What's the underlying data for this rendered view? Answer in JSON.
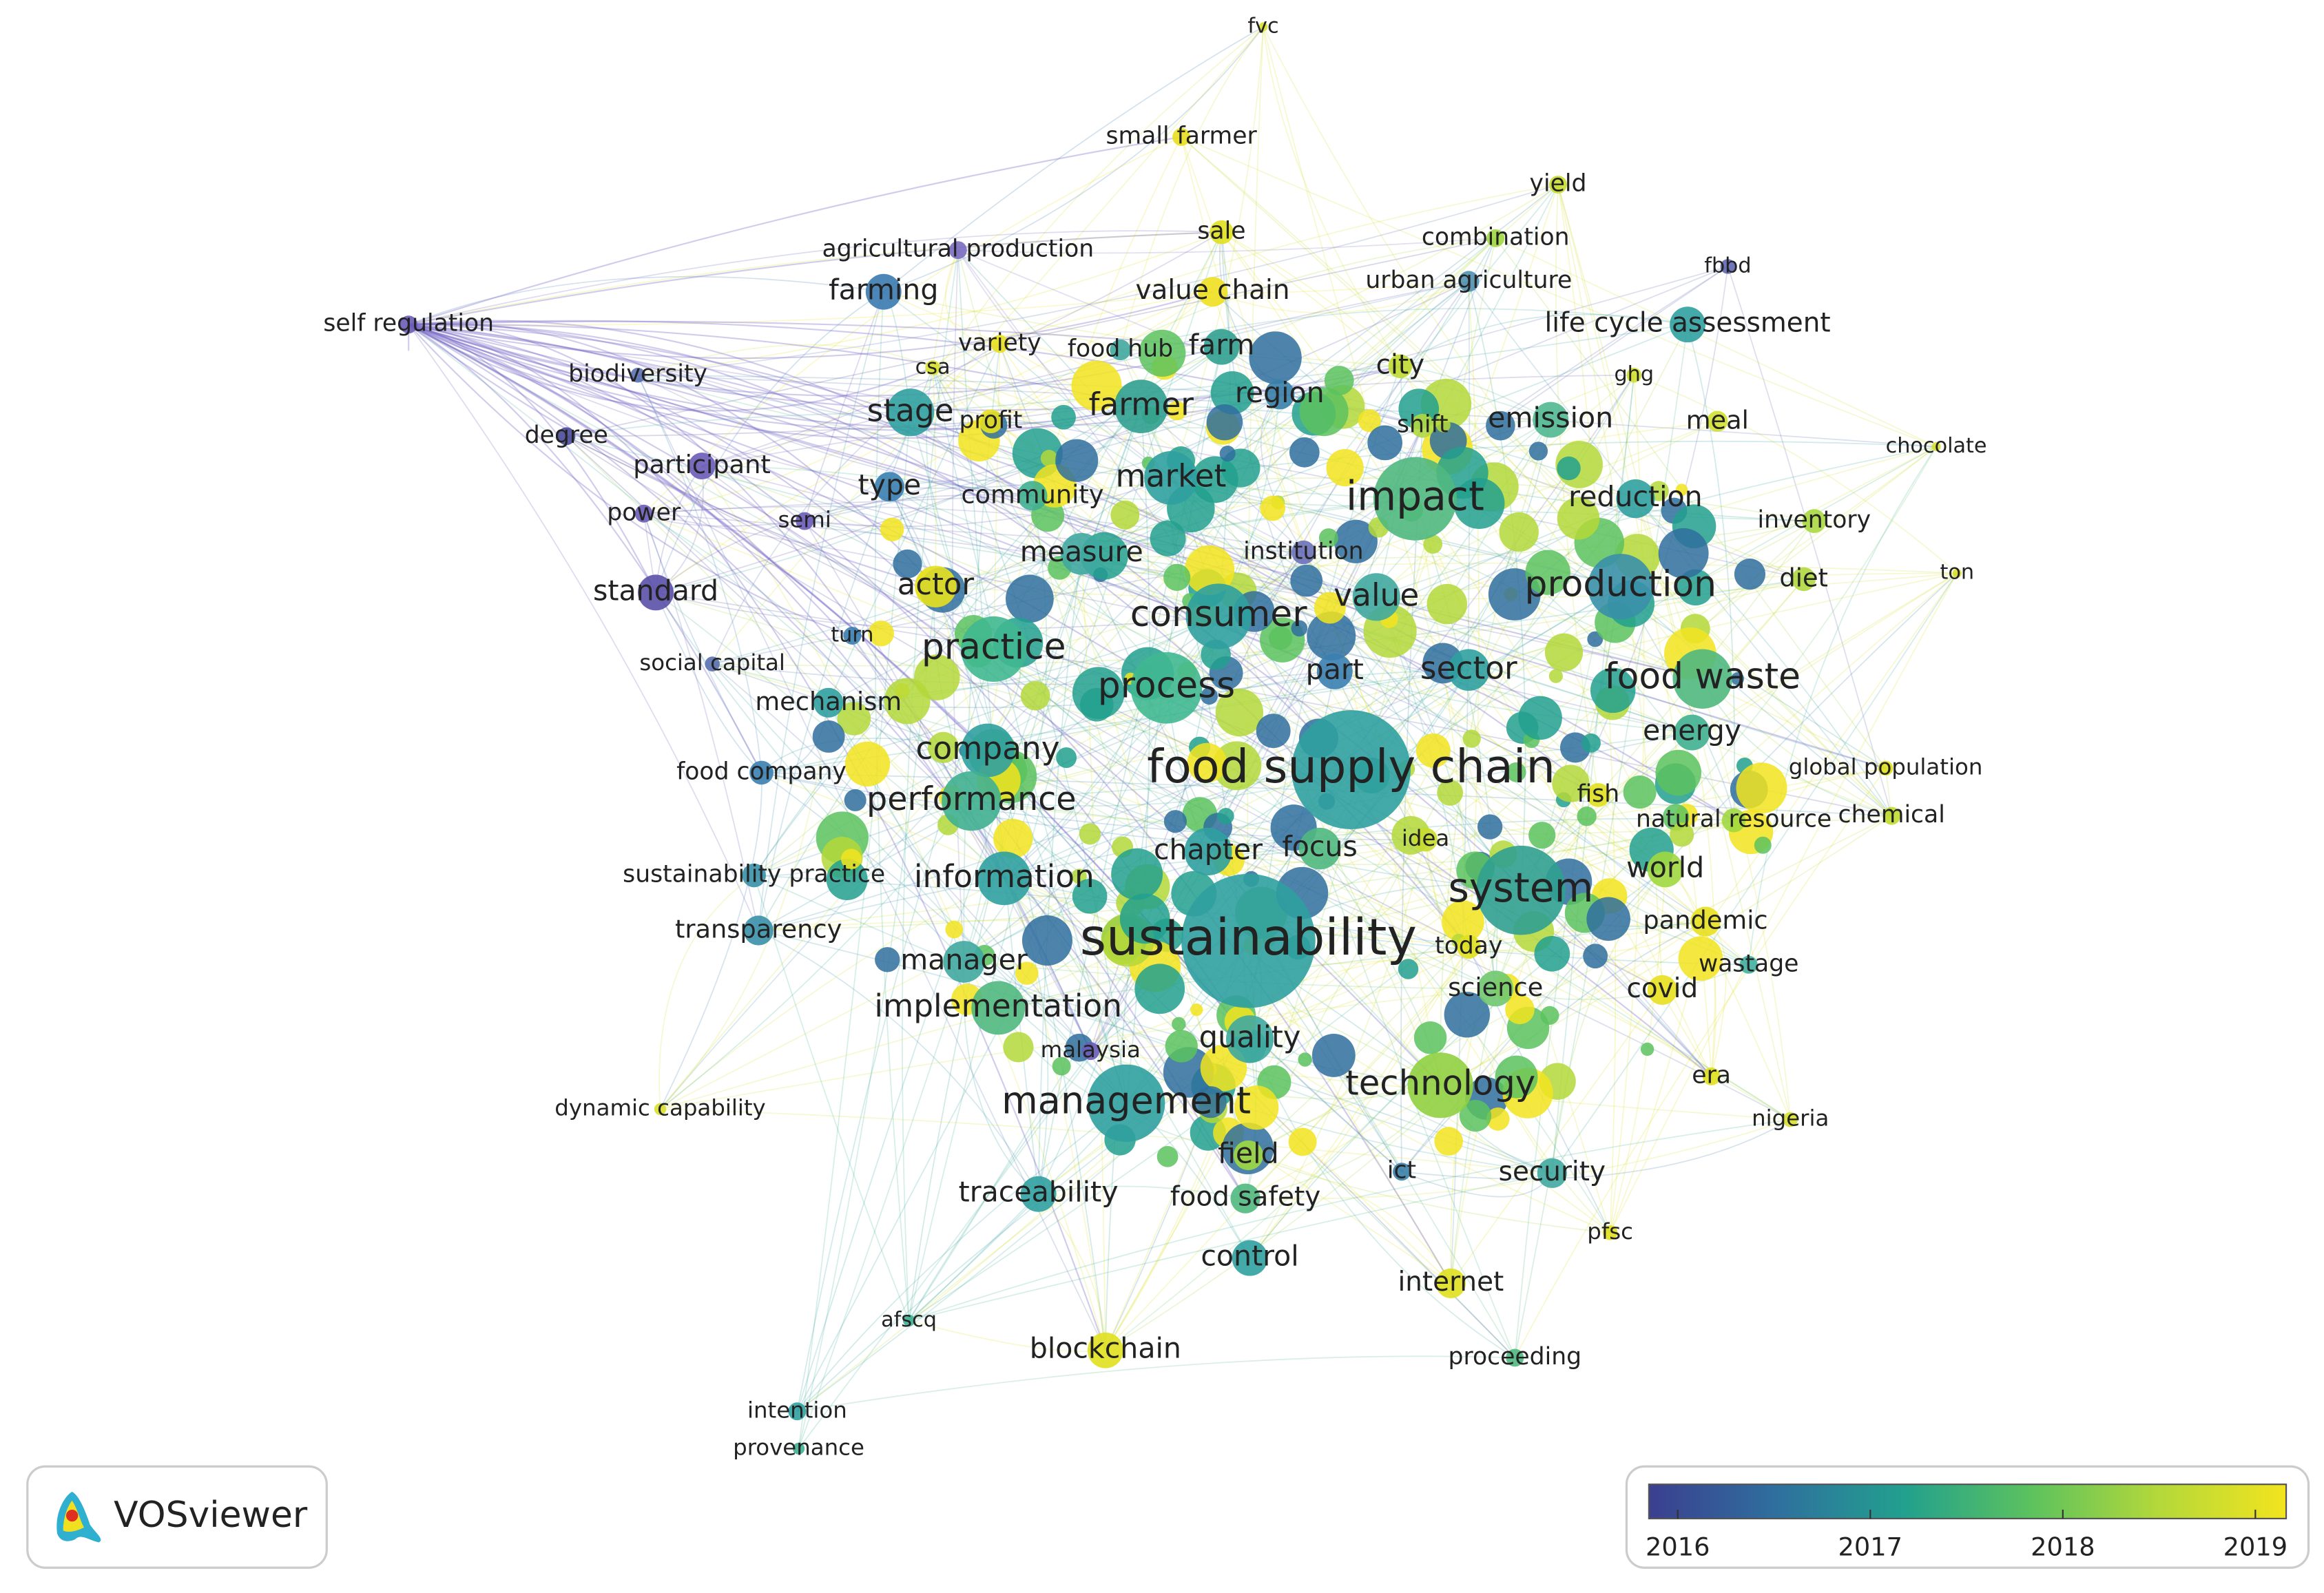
{
  "nodes": [
    {
      "label": "fvc",
      "color": "#d8e030"
    },
    {
      "label": "small farmer",
      "color": "#e8e020"
    },
    {
      "label": "yield",
      "color": "#c8dc30"
    },
    {
      "label": "sale",
      "color": "#e0e020"
    },
    {
      "label": "combination",
      "color": "#a0d840"
    },
    {
      "label": "agricultural production",
      "color": "#7a6cc0"
    },
    {
      "label": "fbbd",
      "color": "#6068b0"
    },
    {
      "label": "farming",
      "color": "#3a7ab0"
    },
    {
      "label": "value chain",
      "color": "#f0e020"
    },
    {
      "label": "urban agriculture",
      "color": "#5090b0"
    },
    {
      "label": "self regulation",
      "color": "#6a5cb8"
    },
    {
      "label": "life cycle assessment",
      "color": "#30a0a0"
    },
    {
      "label": "variety",
      "color": "#e8e020"
    },
    {
      "label": "food hub",
      "color": "#40a8a0"
    },
    {
      "label": "farm",
      "color": "#30a090"
    },
    {
      "label": "csa",
      "color": "#d8e030"
    },
    {
      "label": "city",
      "color": "#c0dc30"
    },
    {
      "label": "biodiversity",
      "color": "#5a70b0"
    },
    {
      "label": "ghg",
      "color": "#d0e030"
    },
    {
      "label": "region",
      "color": "#3a80a8"
    },
    {
      "label": "farmer",
      "color": "#30a090"
    },
    {
      "label": "stage",
      "color": "#30a0a0"
    },
    {
      "label": "profit",
      "color": "#e8e020"
    },
    {
      "label": "shift",
      "color": "#b0d840"
    },
    {
      "label": "emission",
      "color": "#50b890"
    },
    {
      "label": "meal",
      "color": "#d0e030"
    },
    {
      "label": "degree",
      "color": "#4a4a98"
    },
    {
      "label": "chocolate",
      "color": "#d8e030"
    },
    {
      "label": "participant",
      "color": "#6a5cb8"
    },
    {
      "label": "market",
      "color": "#30a0a0"
    },
    {
      "label": "type",
      "color": "#3a80b0"
    },
    {
      "label": "community",
      "color": "#40b090"
    },
    {
      "label": "impact",
      "color": "#50b880"
    },
    {
      "label": "reduction",
      "color": "#30a0a0"
    },
    {
      "label": "power",
      "color": "#6a5cb8"
    },
    {
      "label": "semi",
      "color": "#6a5cb8"
    },
    {
      "label": "inventory",
      "color": "#a8d840"
    },
    {
      "label": "measure",
      "color": "#40a8a0"
    },
    {
      "label": "institution",
      "color": "#6a70b8"
    },
    {
      "label": "ton",
      "color": "#d8e030"
    },
    {
      "label": "standard",
      "color": "#5a50a8"
    },
    {
      "label": "actor",
      "color": "#e8e020"
    },
    {
      "label": "production",
      "color": "#3a90a8"
    },
    {
      "label": "diet",
      "color": "#b0d840"
    },
    {
      "label": "value",
      "color": "#40a8a0"
    },
    {
      "label": "consumer",
      "color": "#30a0a0"
    },
    {
      "label": "turn",
      "color": "#3a80b0"
    },
    {
      "label": "practice",
      "color": "#40b890"
    },
    {
      "label": "social capital",
      "color": "#5a70b0"
    },
    {
      "label": "part",
      "color": "#3a80b0"
    },
    {
      "label": "sector",
      "color": "#30a0a0"
    },
    {
      "label": "food waste",
      "color": "#50b880"
    },
    {
      "label": "process",
      "color": "#40b890"
    },
    {
      "label": "mechanism",
      "color": "#30a0a0"
    },
    {
      "label": "energy",
      "color": "#40b090"
    },
    {
      "label": "company",
      "color": "#30a0a0"
    },
    {
      "label": "global population",
      "color": "#e0e020"
    },
    {
      "label": "food supply chain",
      "color": "#30a0a0"
    },
    {
      "label": "food company",
      "color": "#3a80b0"
    },
    {
      "label": "fish",
      "color": "#e0e020"
    },
    {
      "label": "performance",
      "color": "#40b090"
    },
    {
      "label": "natural resource",
      "color": "#a0d840"
    },
    {
      "label": "chemical",
      "color": "#c0dc30"
    },
    {
      "label": "idea",
      "color": "#c8dc30"
    },
    {
      "label": "chapter",
      "color": "#30a0a0"
    },
    {
      "label": "focus",
      "color": "#50b880"
    },
    {
      "label": "sustainability practice",
      "color": "#3a90a8"
    },
    {
      "label": "information",
      "color": "#30a0a0"
    },
    {
      "label": "world",
      "color": "#a0d840"
    },
    {
      "label": "system",
      "color": "#30a090"
    },
    {
      "label": "pandemic",
      "color": "#e8e020"
    },
    {
      "label": "transparency",
      "color": "#3a90a8"
    },
    {
      "label": "sustainability",
      "color": "#30a0a0"
    },
    {
      "label": "today",
      "color": "#e0e020"
    },
    {
      "label": "manager",
      "color": "#40a8a0"
    },
    {
      "label": "wastage",
      "color": "#40b0a0"
    },
    {
      "label": "science",
      "color": "#70c870"
    },
    {
      "label": "covid",
      "color": "#e8e020"
    },
    {
      "label": "implementation",
      "color": "#50b880"
    },
    {
      "label": "quality",
      "color": "#40a8a0"
    },
    {
      "label": "malaysia",
      "color": "#6a5cb8"
    },
    {
      "label": "technology",
      "color": "#90d040"
    },
    {
      "label": "era",
      "color": "#e0e020"
    },
    {
      "label": "dynamic capability",
      "color": "#d8e030"
    },
    {
      "label": "management",
      "color": "#30a0a0"
    },
    {
      "label": "nigeria",
      "color": "#d8e030"
    },
    {
      "label": "field",
      "color": "#a0d840"
    },
    {
      "label": "ict",
      "color": "#3a80a8"
    },
    {
      "label": "security",
      "color": "#40a8a0"
    },
    {
      "label": "traceability",
      "color": "#30a0a0"
    },
    {
      "label": "food safety",
      "color": "#50b880"
    },
    {
      "label": "pfsc",
      "color": "#e0e020"
    },
    {
      "label": "control",
      "color": "#30a0a0"
    },
    {
      "label": "internet",
      "color": "#e0e020"
    },
    {
      "label": "afscq",
      "color": "#40b090"
    },
    {
      "label": "blockchain",
      "color": "#e0e020"
    },
    {
      "label": "proceeding",
      "color": "#50b880"
    },
    {
      "label": "intention",
      "color": "#30a0a0"
    },
    {
      "label": "provenance",
      "color": "#40b090"
    }
  ],
  "logo": "VOSviewer",
  "colorbar": {
    "range": [
      2015.85,
      2019.16
    ],
    "ticks": [
      2016,
      2017,
      2018,
      2019
    ],
    "colors": [
      "#3b3f8f",
      "#2f6f9e",
      "#22a08e",
      "#5cc25e",
      "#b4d83a",
      "#f2e41e"
    ]
  }
}
